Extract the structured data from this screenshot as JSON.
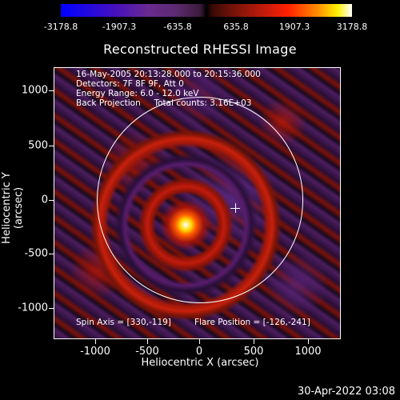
{
  "colorbar": {
    "colors": [
      "#0000ff",
      "#6a2a8f",
      "#000000",
      "#c21b0c",
      "#ff8a00",
      "#ffffff"
    ],
    "ticks": [
      "-3178.8",
      "-1907.3",
      "-635.8",
      "635.8",
      "1907.3",
      "3178.8"
    ]
  },
  "title": "Reconstructed RHESSI Image",
  "info": {
    "line1": "16-May-2005 20:13:28.000 to 20:15:36.000",
    "line2": "Detectors: 7F 8F 9F, Att 0",
    "line3": "Energy Range: 6.0 - 12.0 keV",
    "line4": "Back Projection     Total counts: 3.16E+03"
  },
  "footer": {
    "spin_axis": "Spin Axis = [330,-119]",
    "flare_position": "Flare Position = [-126,-241]"
  },
  "axes": {
    "xlabel": "Heliocentric X (arcsec)",
    "ylabel": "Heliocentric Y (arcsec)",
    "xticks": [
      "-1000",
      "-500",
      "0",
      "500",
      "1000"
    ],
    "yticks": [
      "1000",
      "500",
      "0",
      "-500",
      "-1000"
    ]
  },
  "timestamp": "30-Apr-2022 03:08"
}
